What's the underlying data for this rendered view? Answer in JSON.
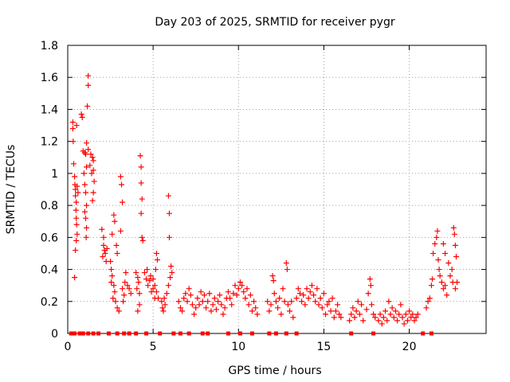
{
  "chart_data": {
    "type": "scatter",
    "title": "Day 203 of 2025, SRMTID for receiver pygr",
    "xlabel": "GPS time / hours",
    "ylabel": "SRMTID / TECUs",
    "xlim": [
      0,
      24.5
    ],
    "ylim": [
      0,
      1.8
    ],
    "xticks": [
      0,
      5,
      10,
      15,
      20
    ],
    "yticks": [
      0,
      0.2,
      0.4,
      0.6,
      0.8,
      1,
      1.2,
      1.4,
      1.6,
      1.8
    ],
    "xtick_labels": [
      "0",
      "5",
      "10",
      "15",
      "20"
    ],
    "ytick_labels": [
      "0",
      "0.2",
      "0.4",
      "0.6",
      "0.8",
      "1",
      "1.2",
      "1.4",
      "1.6",
      "1.8"
    ],
    "grid": true,
    "marker": "+",
    "color": "#ff0000",
    "series": [
      {
        "name": "SRMTID",
        "points": [
          [
            0.3,
            1.32
          ],
          [
            0.3,
            1.28
          ],
          [
            0.32,
            1.2
          ],
          [
            0.35,
            1.06
          ],
          [
            0.4,
            0.98
          ],
          [
            0.42,
            0.93
          ],
          [
            0.45,
            0.9
          ],
          [
            0.45,
            0.86
          ],
          [
            0.5,
            0.82
          ],
          [
            0.48,
            0.77
          ],
          [
            0.5,
            0.72
          ],
          [
            0.52,
            0.68
          ],
          [
            0.55,
            0.62
          ],
          [
            0.5,
            0.58
          ],
          [
            0.45,
            0.52
          ],
          [
            0.4,
            0.35
          ],
          [
            0.55,
            0.92
          ],
          [
            0.6,
            0.88
          ],
          [
            0.52,
            1.3
          ],
          [
            0.8,
            1.37
          ],
          [
            0.85,
            1.35
          ],
          [
            0.9,
            1.14
          ],
          [
            1.0,
            1.13
          ],
          [
            1.05,
            1.12
          ],
          [
            1.1,
            1.04
          ],
          [
            0.95,
            1.0
          ],
          [
            1.0,
            0.93
          ],
          [
            1.05,
            0.88
          ],
          [
            1.1,
            0.8
          ],
          [
            1.0,
            0.76
          ],
          [
            1.05,
            0.72
          ],
          [
            1.1,
            0.66
          ],
          [
            1.08,
            0.6
          ],
          [
            1.15,
            1.42
          ],
          [
            1.2,
            1.55
          ],
          [
            1.2,
            1.61
          ],
          [
            1.2,
            1.15
          ],
          [
            1.1,
            1.19
          ],
          [
            1.3,
            1.05
          ],
          [
            1.45,
            1.1
          ],
          [
            1.5,
            1.08
          ],
          [
            1.5,
            1.02
          ],
          [
            1.55,
            0.95
          ],
          [
            1.5,
            0.88
          ],
          [
            1.45,
            0.83
          ],
          [
            1.4,
            1.0
          ],
          [
            1.35,
            1.12
          ],
          [
            2.0,
            0.65
          ],
          [
            2.1,
            0.6
          ],
          [
            2.1,
            0.55
          ],
          [
            2.15,
            0.52
          ],
          [
            2.2,
            0.5
          ],
          [
            2.05,
            0.48
          ],
          [
            2.25,
            0.45
          ],
          [
            2.3,
            0.53
          ],
          [
            2.5,
            0.45
          ],
          [
            2.55,
            0.4
          ],
          [
            2.6,
            0.36
          ],
          [
            2.55,
            0.32
          ],
          [
            2.7,
            0.3
          ],
          [
            2.75,
            0.26
          ],
          [
            2.65,
            0.22
          ],
          [
            2.8,
            0.2
          ],
          [
            2.9,
            0.16
          ],
          [
            3.0,
            0.14
          ],
          [
            2.7,
            0.74
          ],
          [
            2.75,
            0.7
          ],
          [
            2.6,
            0.62
          ],
          [
            2.85,
            0.55
          ],
          [
            2.9,
            0.5
          ],
          [
            3.1,
            0.98
          ],
          [
            3.15,
            0.93
          ],
          [
            3.2,
            0.82
          ],
          [
            3.1,
            0.64
          ],
          [
            3.2,
            0.28
          ],
          [
            3.3,
            0.24
          ],
          [
            3.25,
            0.2
          ],
          [
            3.35,
            0.32
          ],
          [
            3.4,
            0.38
          ],
          [
            3.5,
            0.3
          ],
          [
            3.6,
            0.28
          ],
          [
            3.7,
            0.25
          ],
          [
            4.0,
            0.38
          ],
          [
            4.1,
            0.35
          ],
          [
            4.15,
            0.32
          ],
          [
            4.05,
            0.28
          ],
          [
            4.2,
            0.25
          ],
          [
            4.25,
            1.11
          ],
          [
            4.3,
            1.04
          ],
          [
            4.3,
            0.94
          ],
          [
            4.35,
            0.84
          ],
          [
            4.3,
            0.75
          ],
          [
            4.35,
            0.6
          ],
          [
            4.4,
            0.58
          ],
          [
            4.1,
            0.14
          ],
          [
            4.2,
            0.18
          ],
          [
            4.5,
            0.38
          ],
          [
            4.6,
            0.34
          ],
          [
            4.7,
            0.3
          ],
          [
            4.8,
            0.33
          ],
          [
            4.9,
            0.26
          ],
          [
            5.0,
            0.28
          ],
          [
            5.1,
            0.22
          ],
          [
            4.65,
            0.4
          ],
          [
            4.85,
            0.36
          ],
          [
            5.0,
            0.34
          ],
          [
            5.1,
            0.3
          ],
          [
            5.2,
            0.5
          ],
          [
            5.25,
            0.46
          ],
          [
            5.15,
            0.4
          ],
          [
            5.2,
            0.26
          ],
          [
            5.3,
            0.22
          ],
          [
            5.5,
            0.2
          ],
          [
            5.55,
            0.16
          ],
          [
            5.6,
            0.14
          ],
          [
            5.7,
            0.18
          ],
          [
            5.65,
            0.22
          ],
          [
            5.8,
            0.25
          ],
          [
            5.9,
            0.3
          ],
          [
            6.0,
            0.35
          ],
          [
            5.9,
            0.86
          ],
          [
            5.95,
            0.75
          ],
          [
            5.95,
            0.6
          ],
          [
            6.05,
            0.42
          ],
          [
            6.1,
            0.38
          ],
          [
            6.5,
            0.2
          ],
          [
            6.6,
            0.16
          ],
          [
            6.7,
            0.14
          ],
          [
            6.8,
            0.22
          ],
          [
            6.9,
            0.25
          ],
          [
            7.0,
            0.2
          ],
          [
            7.1,
            0.28
          ],
          [
            7.2,
            0.24
          ],
          [
            7.3,
            0.18
          ],
          [
            7.4,
            0.12
          ],
          [
            7.5,
            0.16
          ],
          [
            7.6,
            0.22
          ],
          [
            7.7,
            0.18
          ],
          [
            7.8,
            0.26
          ],
          [
            7.9,
            0.2
          ],
          [
            8.0,
            0.24
          ],
          [
            8.1,
            0.16
          ],
          [
            8.2,
            0.2
          ],
          [
            8.3,
            0.25
          ],
          [
            8.4,
            0.14
          ],
          [
            8.5,
            0.18
          ],
          [
            8.6,
            0.22
          ],
          [
            8.7,
            0.15
          ],
          [
            8.8,
            0.2
          ],
          [
            8.9,
            0.24
          ],
          [
            9.0,
            0.18
          ],
          [
            9.1,
            0.12
          ],
          [
            9.2,
            0.16
          ],
          [
            9.3,
            0.22
          ],
          [
            9.4,
            0.26
          ],
          [
            9.5,
            0.22
          ],
          [
            9.6,
            0.18
          ],
          [
            9.7,
            0.25
          ],
          [
            9.8,
            0.3
          ],
          [
            9.9,
            0.24
          ],
          [
            10.0,
            0.28
          ],
          [
            10.1,
            0.32
          ],
          [
            10.2,
            0.3
          ],
          [
            10.3,
            0.26
          ],
          [
            10.4,
            0.22
          ],
          [
            10.5,
            0.28
          ],
          [
            10.6,
            0.18
          ],
          [
            10.7,
            0.24
          ],
          [
            10.8,
            0.14
          ],
          [
            10.9,
            0.2
          ],
          [
            11.0,
            0.16
          ],
          [
            11.1,
            0.12
          ],
          [
            11.7,
            0.2
          ],
          [
            11.8,
            0.14
          ],
          [
            11.9,
            0.18
          ],
          [
            12.0,
            0.36
          ],
          [
            12.05,
            0.33
          ],
          [
            12.1,
            0.25
          ],
          [
            12.2,
            0.2
          ],
          [
            12.3,
            0.16
          ],
          [
            12.4,
            0.22
          ],
          [
            12.5,
            0.12
          ],
          [
            12.6,
            0.28
          ],
          [
            12.7,
            0.2
          ],
          [
            12.8,
            0.44
          ],
          [
            12.85,
            0.4
          ],
          [
            12.9,
            0.18
          ],
          [
            13.0,
            0.14
          ],
          [
            13.1,
            0.2
          ],
          [
            13.2,
            0.1
          ],
          [
            13.4,
            0.22
          ],
          [
            13.5,
            0.28
          ],
          [
            13.6,
            0.25
          ],
          [
            13.7,
            0.2
          ],
          [
            13.8,
            0.24
          ],
          [
            13.9,
            0.18
          ],
          [
            14.0,
            0.28
          ],
          [
            14.1,
            0.22
          ],
          [
            14.2,
            0.26
          ],
          [
            14.3,
            0.3
          ],
          [
            14.4,
            0.24
          ],
          [
            14.5,
            0.2
          ],
          [
            14.6,
            0.28
          ],
          [
            14.7,
            0.18
          ],
          [
            14.8,
            0.22
          ],
          [
            14.9,
            0.16
          ],
          [
            15.0,
            0.25
          ],
          [
            15.1,
            0.12
          ],
          [
            15.2,
            0.18
          ],
          [
            15.3,
            0.2
          ],
          [
            15.4,
            0.14
          ],
          [
            15.5,
            0.22
          ],
          [
            15.6,
            0.1
          ],
          [
            15.7,
            0.14
          ],
          [
            15.8,
            0.18
          ],
          [
            15.9,
            0.12
          ],
          [
            16.0,
            0.1
          ],
          [
            16.5,
            0.08
          ],
          [
            16.6,
            0.12
          ],
          [
            16.7,
            0.16
          ],
          [
            16.8,
            0.1
          ],
          [
            16.9,
            0.14
          ],
          [
            17.0,
            0.2
          ],
          [
            17.1,
            0.12
          ],
          [
            17.2,
            0.18
          ],
          [
            17.3,
            0.08
          ],
          [
            17.5,
            0.15
          ],
          [
            17.6,
            0.25
          ],
          [
            17.7,
            0.34
          ],
          [
            17.75,
            0.3
          ],
          [
            17.8,
            0.18
          ],
          [
            17.9,
            0.12
          ],
          [
            18.0,
            0.1
          ],
          [
            18.2,
            0.08
          ],
          [
            18.3,
            0.12
          ],
          [
            18.4,
            0.06
          ],
          [
            18.5,
            0.1
          ],
          [
            18.6,
            0.14
          ],
          [
            18.7,
            0.08
          ],
          [
            18.8,
            0.2
          ],
          [
            18.9,
            0.12
          ],
          [
            19.0,
            0.16
          ],
          [
            19.1,
            0.1
          ],
          [
            19.2,
            0.14
          ],
          [
            19.3,
            0.08
          ],
          [
            19.4,
            0.12
          ],
          [
            19.5,
            0.18
          ],
          [
            19.6,
            0.1
          ],
          [
            19.7,
            0.06
          ],
          [
            19.8,
            0.12
          ],
          [
            19.9,
            0.08
          ],
          [
            20.0,
            0.14
          ],
          [
            20.1,
            0.1
          ],
          [
            20.2,
            0.12
          ],
          [
            20.3,
            0.08
          ],
          [
            20.4,
            0.1
          ],
          [
            20.5,
            0.12
          ],
          [
            21.0,
            0.16
          ],
          [
            21.1,
            0.2
          ],
          [
            21.2,
            0.22
          ],
          [
            21.3,
            0.3
          ],
          [
            21.35,
            0.34
          ],
          [
            21.4,
            0.5
          ],
          [
            21.5,
            0.56
          ],
          [
            21.6,
            0.6
          ],
          [
            21.65,
            0.64
          ],
          [
            21.7,
            0.46
          ],
          [
            21.75,
            0.4
          ],
          [
            21.8,
            0.36
          ],
          [
            21.9,
            0.32
          ],
          [
            22.0,
            0.28
          ],
          [
            22.1,
            0.3
          ],
          [
            22.2,
            0.24
          ],
          [
            22.0,
            0.56
          ],
          [
            22.1,
            0.5
          ],
          [
            22.3,
            0.44
          ],
          [
            22.4,
            0.36
          ],
          [
            22.5,
            0.4
          ],
          [
            22.55,
            0.32
          ],
          [
            22.6,
            0.66
          ],
          [
            22.65,
            0.62
          ],
          [
            22.7,
            0.55
          ],
          [
            22.75,
            0.48
          ],
          [
            22.7,
            0.28
          ],
          [
            22.8,
            0.32
          ]
        ]
      },
      {
        "name": "zero_markers",
        "marker": "square",
        "x": [
          0.2,
          0.4,
          0.7,
          0.9,
          1.2,
          1.5,
          1.8,
          2.4,
          2.9,
          3.3,
          3.6,
          4.0,
          4.6,
          5.4,
          6.2,
          6.6,
          7.1,
          7.9,
          8.2,
          9.4,
          10.1,
          10.8,
          11.8,
          12.2,
          12.8,
          13.4,
          16.6,
          17.9,
          20.8,
          21.3
        ],
        "y": 0
      }
    ]
  }
}
